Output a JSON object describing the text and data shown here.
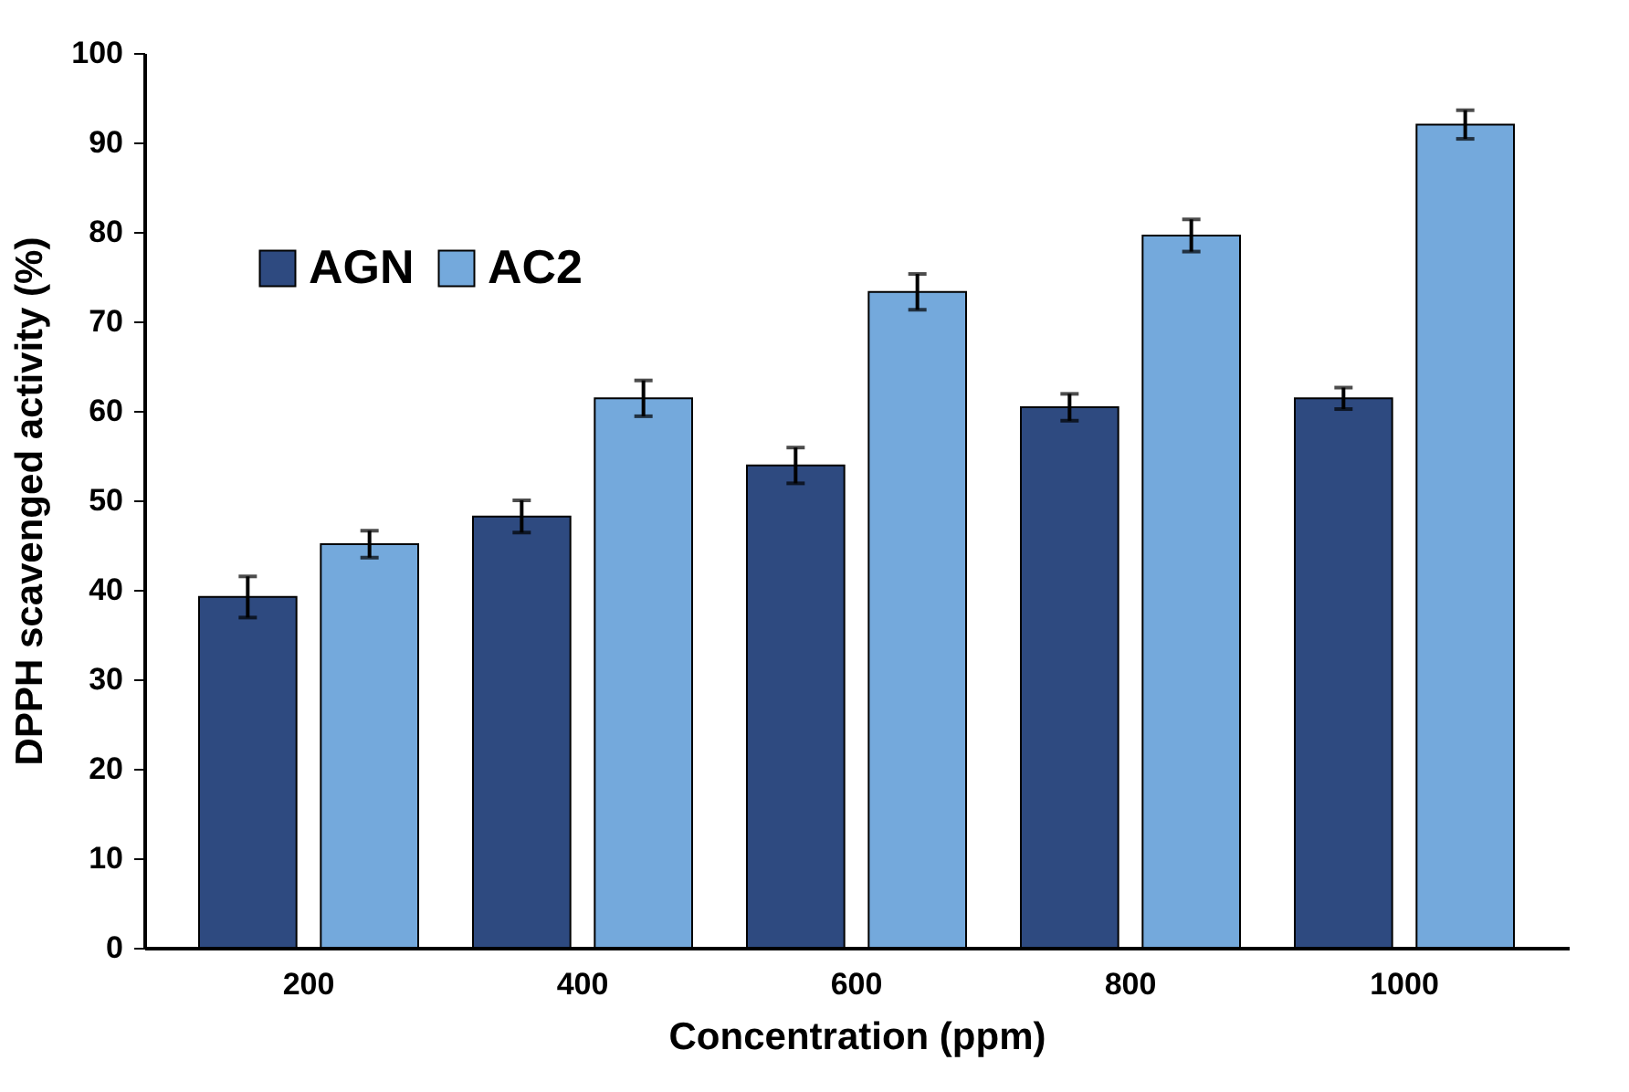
{
  "chart_data": {
    "type": "bar",
    "xlabel": "Concentration (ppm)",
    "ylabel": "DPPH scavenged activity (%)",
    "categories": [
      "200",
      "400",
      "600",
      "800",
      "1000"
    ],
    "series": [
      {
        "name": "AGN",
        "color": "#2e4a80",
        "values": [
          39.2,
          48.2,
          53.9,
          60.4,
          61.4
        ],
        "errors": [
          2.3,
          1.8,
          2,
          1.5,
          1.2
        ]
      },
      {
        "name": "AC2",
        "color": "#74a9dc",
        "values": [
          45.1,
          61.4,
          73.3,
          79.6,
          92
        ],
        "errors": [
          1.5,
          2,
          2,
          1.8,
          1.6
        ]
      }
    ],
    "ylim": [
      0,
      100
    ],
    "yticks": [
      0,
      10,
      20,
      30,
      40,
      50,
      60,
      70,
      80,
      90,
      100
    ],
    "grid": false,
    "legend": "top left"
  }
}
